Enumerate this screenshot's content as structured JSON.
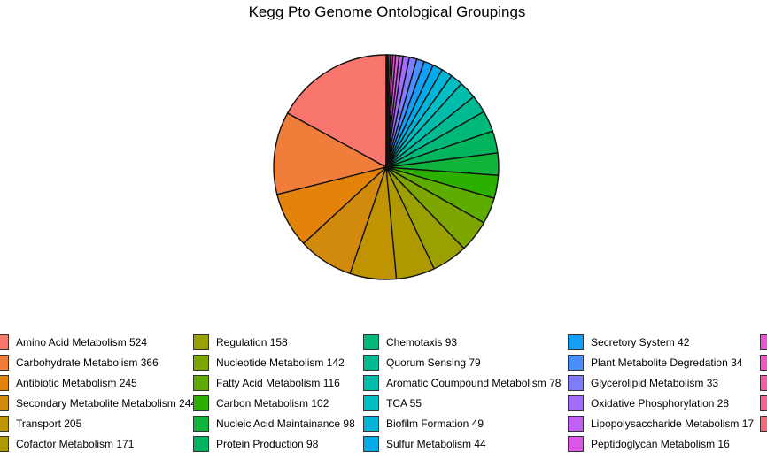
{
  "chart_data": {
    "type": "pie",
    "title": "Kegg Pto Genome Ontological Groupings",
    "slices": [
      {
        "label": "Amino Acid Metabolism 524",
        "value": 524,
        "color": "#F8766D"
      },
      {
        "label": "Carbohydrate Metabolism 366",
        "value": 366,
        "color": "#F07D3A"
      },
      {
        "label": "Antibiotic Metabolism 245",
        "value": 245,
        "color": "#E3830A"
      },
      {
        "label": "Secondary Metabolite Metabolism 244",
        "value": 244,
        "color": "#D28A0C"
      },
      {
        "label": "Transport 205",
        "value": 205,
        "color": "#C09400"
      },
      {
        "label": "Cofactor Metabolism 171",
        "value": 171,
        "color": "#AE9A00"
      },
      {
        "label": "Regulation 158",
        "value": 158,
        "color": "#9AA000"
      },
      {
        "label": "Nucleotide Metabolism 142",
        "value": 142,
        "color": "#7EA600"
      },
      {
        "label": "Fatty Acid  Metabolism 116",
        "value": 116,
        "color": "#5EAC00"
      },
      {
        "label": "Carbon Metabolism 102",
        "value": 102,
        "color": "#2CB000"
      },
      {
        "label": "Nucleic Acid Maintainance 98",
        "value": 98,
        "color": "#12B33A"
      },
      {
        "label": "Protein Production 98",
        "value": 98,
        "color": "#00B55E"
      },
      {
        "label": "Chemotaxis 93",
        "value": 93,
        "color": "#00B878"
      },
      {
        "label": "Quorum Sensing 79",
        "value": 79,
        "color": "#00BA92"
      },
      {
        "label": "Aromatic Coumpound Metabolism 78",
        "value": 78,
        "color": "#00BCAA"
      },
      {
        "label": "TCA 55",
        "value": 55,
        "color": "#00BEC2"
      },
      {
        "label": "Biofilm Formation 49",
        "value": 49,
        "color": "#00B6D8"
      },
      {
        "label": "Sulfur Metabolism 44",
        "value": 44,
        "color": "#00ABEA"
      },
      {
        "label": "Secretory System 42",
        "value": 42,
        "color": "#159EF8"
      },
      {
        "label": "Plant Metabolite Degredation 34",
        "value": 34,
        "color": "#4A8EFF"
      },
      {
        "label": "Glycerolipid Metabolism 33",
        "value": 33,
        "color": "#7F7CFF"
      },
      {
        "label": "Oxidative Phosphorylation 28",
        "value": 28,
        "color": "#A26CFF"
      },
      {
        "label": "Lipopolysaccharide Metabolism 17",
        "value": 17,
        "color": "#C160F5"
      },
      {
        "label": "Peptidoglycan Metabolism 16",
        "value": 16,
        "color": "#DC57E6"
      },
      {
        "label": "",
        "value": 12,
        "color": "#EE53D4"
      },
      {
        "label": "",
        "value": 10,
        "color": "#F756C0"
      },
      {
        "label": "",
        "value": 8,
        "color": "#FB5CA8"
      },
      {
        "label": "",
        "value": 6,
        "color": "#FB6290"
      },
      {
        "label": "",
        "value": 5,
        "color": "#F8697C"
      }
    ],
    "legend_position": "bottom"
  }
}
